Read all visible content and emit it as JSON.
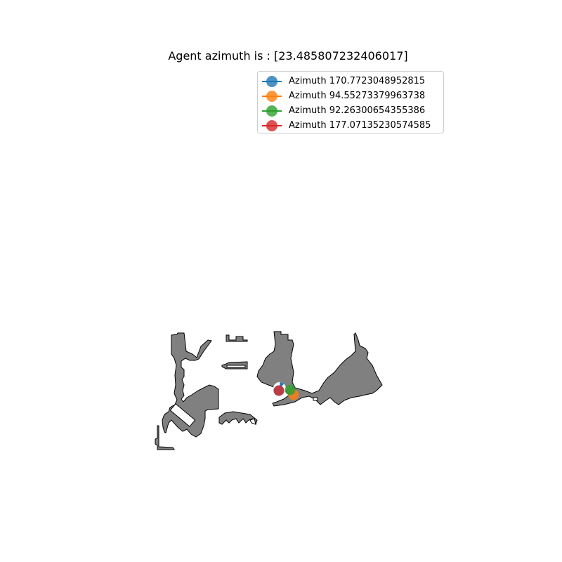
{
  "title": "Agent azimuth is : [23.485807232406017]",
  "legend": [
    {
      "label": "Azimuth 170.7723048952815",
      "color": "#1f77b4"
    },
    {
      "label": "Azimuth 94.55273379963738",
      "color": "#ff7f0e"
    },
    {
      "label": "Azimuth 92.26300654355386",
      "color": "#2ca02c"
    },
    {
      "label": "Azimuth 177.07135230574585",
      "color": "#d62728"
    }
  ],
  "colors": {
    "floor_fill": "#808080",
    "floor_edge": "#000000",
    "agent_fill": "#ffffff",
    "agent_heading": "#1f77b4"
  },
  "agent": {
    "azimuth": 23.485807232406017
  }
}
